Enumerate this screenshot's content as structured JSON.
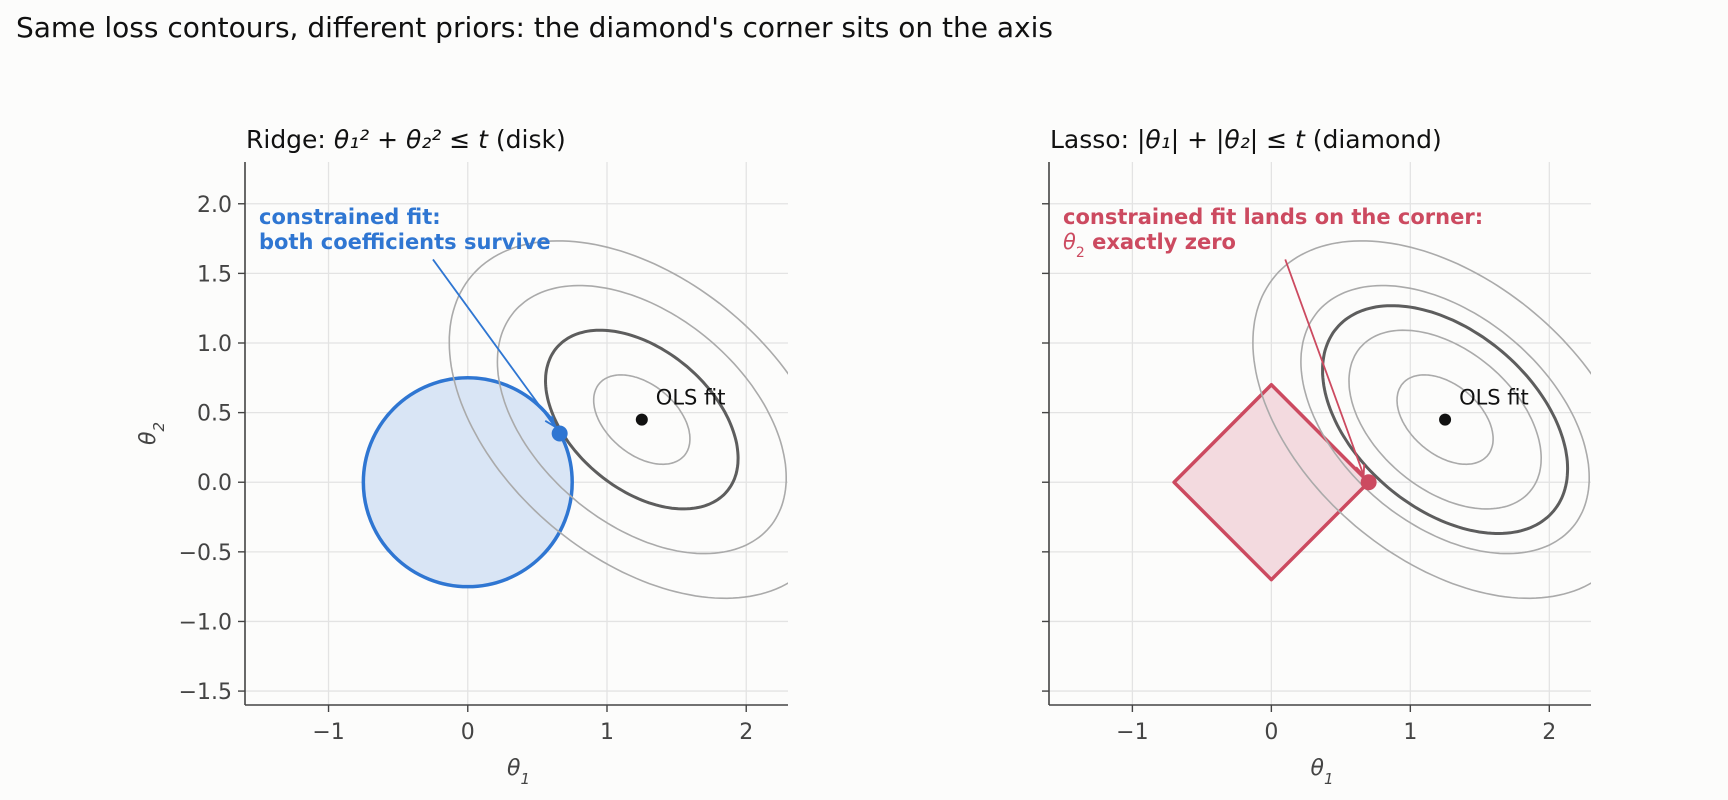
{
  "figure": {
    "suptitle": "Same loss contours, different priors: the diamond's corner sits on the axis"
  },
  "colors": {
    "ridge": "#2f76d2",
    "ridge_fill": "#d9e5f5",
    "lasso": "#cc4a60",
    "lasso_fill": "#f3dadf",
    "contour_light": "#aaaaaa",
    "contour_dark": "#5d5d5d",
    "grid": "#e3e3e3",
    "axis": "#444444",
    "ols": "#111111"
  },
  "chart_data": [
    {
      "type": "scatter",
      "panel": "ridge",
      "title_prefix": "Ridge: ",
      "title_math": "θ₁² + θ₂² ≤ t",
      "title_suffix": " (disk)",
      "xlabel": "θ1",
      "ylabel": "θ2",
      "xlim": [
        -1.6,
        2.3
      ],
      "ylim": [
        -1.6,
        2.3
      ],
      "xticks": [
        -1,
        0,
        1,
        2
      ],
      "xtick_labels": [
        "−1",
        "0",
        "1",
        "2"
      ],
      "yticks": [
        -1.5,
        -1.0,
        -0.5,
        0.0,
        0.5,
        1.0,
        1.5,
        2.0
      ],
      "ytick_labels": [
        "−1.5",
        "−1.0",
        "−0.5",
        "0.0",
        "0.5",
        "1.0",
        "1.5",
        "2.0"
      ],
      "grid": true,
      "ols_point": {
        "x": 1.25,
        "y": 0.45,
        "label": "OLS fit"
      },
      "constraint": {
        "shape": "disk",
        "radius": 0.75
      },
      "constrained_fit": {
        "x": 0.66,
        "y": 0.35
      },
      "annotation": {
        "lines": [
          "constrained fit:",
          "both coefficients survive"
        ],
        "x_text": -0.25,
        "y_text": 1.6
      },
      "contour_scales": [
        1,
        2,
        3,
        4
      ],
      "highlight_contour": 2
    },
    {
      "type": "scatter",
      "panel": "lasso",
      "title_prefix": "Lasso: ",
      "title_math": "|θ₁| + |θ₂| ≤ t",
      "title_suffix": " (diamond)",
      "xlabel": "θ1",
      "ylabel": "",
      "xlim": [
        -1.6,
        2.3
      ],
      "ylim": [
        -1.6,
        2.3
      ],
      "xticks": [
        -1,
        0,
        1,
        2
      ],
      "xtick_labels": [
        "−1",
        "0",
        "1",
        "2"
      ],
      "yticks": [
        -1.5,
        -1.0,
        -0.5,
        0.0,
        0.5,
        1.0,
        1.5,
        2.0
      ],
      "ytick_labels": [],
      "grid": true,
      "ols_point": {
        "x": 1.25,
        "y": 0.45,
        "label": "OLS fit"
      },
      "constraint": {
        "shape": "diamond",
        "radius": 0.7
      },
      "constrained_fit": {
        "x": 0.7,
        "y": 0.0
      },
      "annotation": {
        "lines": [
          "constrained fit lands on the corner:",
          "θ2 exactly zero"
        ],
        "x_text": 0.1,
        "y_text": 1.6
      },
      "contour_scales": [
        1,
        2,
        3,
        4
      ],
      "highlight_contour": 2.55
    }
  ]
}
